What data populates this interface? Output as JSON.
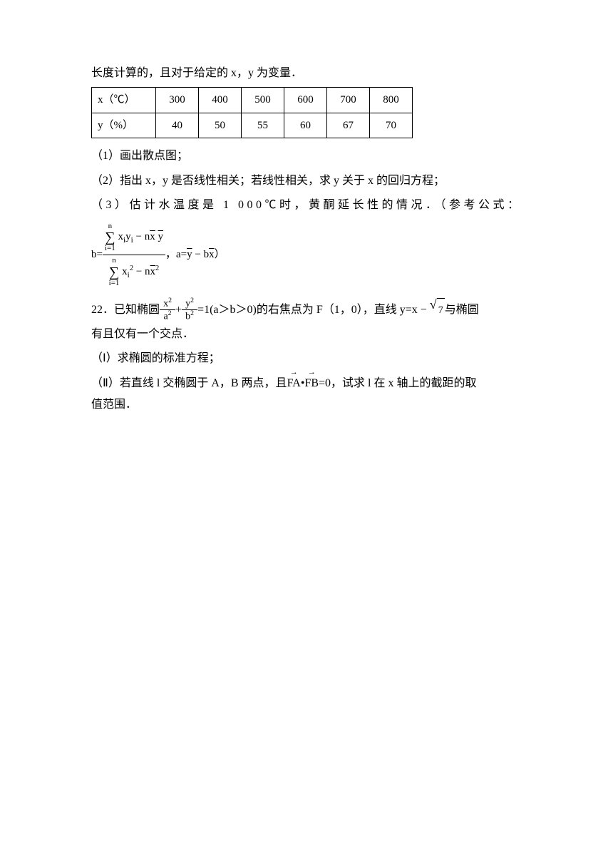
{
  "intro_line": "长度计算的，且对于给定的 x，y 为变量．",
  "table": {
    "row1_label": "x（℃）",
    "row1": [
      "300",
      "400",
      "500",
      "600",
      "700",
      "800"
    ],
    "row2_label": "y（%）",
    "row2": [
      "40",
      "50",
      "55",
      "60",
      "67",
      "70"
    ]
  },
  "q1": "（1）画出散点图；",
  "q2": "（2）指出 x，y 是否线性相关；若线性相关，求 y 关于 x 的回归方程；",
  "q3_a": "（3）估计水温度是 1 000℃时，黄酮延长性的情况．（参考公式：",
  "formula": {
    "lhs": "b=",
    "num_limit_top": "n",
    "num_limit_bot": "i=1",
    "num_expr": "xᵢyᵢ − n",
    "num_xy": "x y",
    "den_limit_top": "n",
    "den_limit_bot": "i=1",
    "den_expr1": "xᵢ",
    "den_expr2": " − n",
    "den_x": "x",
    "tail_comma": "，a=",
    "tail_y": "y",
    "tail_minus": " − b",
    "tail_x": "x",
    "tail_paren": "）"
  },
  "q22": {
    "prefix": "22．已知椭圆",
    "frac1_n": "x",
    "frac1_n_sup": "2",
    "frac1_d": "a",
    "frac1_d_sup": "2",
    "plus": "+",
    "frac2_n": "y",
    "frac2_n_sup": "2",
    "frac2_d": "b",
    "frac2_d_sup": "2",
    "eq": "=1(a＞b＞0)",
    "mid": "的右焦点为 F（1，0），直线 y=x − ",
    "sqrt_val": "7",
    "suffix": "与椭圆",
    "line2": "有且仅有一个交点．",
    "part1": "（Ⅰ）求椭圆的标准方程；",
    "part2_a": "（Ⅱ）若直线 l 交椭圆于 A，B 两点，且",
    "vec1": "FA",
    "dot": "•",
    "vec2": "FB",
    "part2_b": "=0，试求 l 在 x 轴上的截距的取",
    "part2_c": "值范围．"
  },
  "colors": {
    "text": "#000000",
    "background": "#ffffff",
    "border": "#000000"
  }
}
